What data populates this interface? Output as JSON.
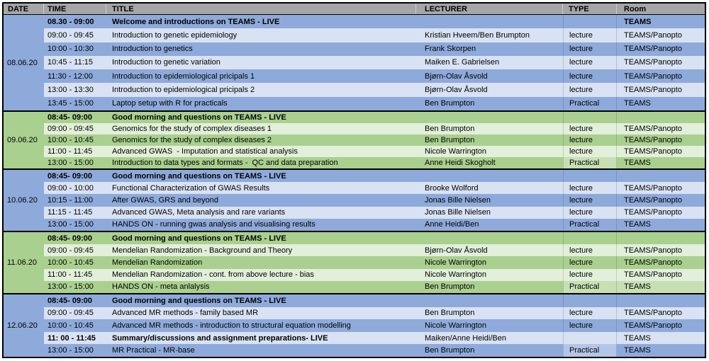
{
  "table": {
    "columns": [
      "DATE",
      "TIME",
      "TITLE",
      "LECTURER",
      "TYPE",
      "Room"
    ]
  },
  "colors": {
    "header_bg": "#A6A6A6",
    "border": "#000000",
    "text": "#000000",
    "blue_medium": "#8EAADB",
    "blue_light": "#D9E2F3",
    "blue_cell_light": "#B4C6E7",
    "green_medium": "#A9D08E",
    "green_light": "#E2EFDA",
    "green_cell_light": "#C6E0B4"
  },
  "days": [
    {
      "date": "08.06.20",
      "scheme": "blue",
      "rows": [
        {
          "time": "08.30 - 09:00",
          "title": "Welcome and introductions on TEAMS - LIVE",
          "lecturer": "",
          "type": "",
          "room": "TEAMS",
          "shade": "medium",
          "bold": true,
          "room_bold": true
        },
        {
          "time": "09:00 - 09:45",
          "title": "Introduction to genetic epidemiology",
          "lecturer": "Kristian Hveem/Ben Brumpton",
          "type": "lecture",
          "room": "TEAMS/Panopto",
          "shade": "light"
        },
        {
          "time": "10:00 - 10:30",
          "title": "Introduction to genetics",
          "lecturer": "Frank Skorpen",
          "type": "lecture",
          "room": "TEAMS/Panopto",
          "shade": "medium"
        },
        {
          "time": "10:45 - 11:15",
          "title": "Introduction to genetic variation",
          "lecturer": "Maiken E. Gabrielsen",
          "type": "lecture",
          "room": "TEAMS/Panopto",
          "shade": "light"
        },
        {
          "time": "11:30 - 12:00",
          "title": "Introduction to epidemiological pricipals 1",
          "lecturer": "Bjørn-Olav Åsvold",
          "type": "lecture",
          "room": "TEAMS/Panopto",
          "shade": "medium"
        },
        {
          "time": "13:00 - 13:30",
          "title": "Introduction to epidemiological pricipals 2",
          "lecturer": "Bjørn-Olav Åsvold",
          "type": "lecture",
          "room": "TEAMS/Panopto",
          "shade": "light"
        },
        {
          "time": "13:45 - 15:00",
          "title": "Laptop setup with R for practicals",
          "lecturer": "Ben Brumpton",
          "type": "Practical",
          "room": "TEAMS",
          "shade": "medium"
        }
      ]
    },
    {
      "date": "09.06.20",
      "scheme": "green",
      "rows": [
        {
          "time": "08:45- 09:00",
          "title": "Good morning and questions on TEAMS - LIVE",
          "lecturer": "",
          "type": "",
          "room": "",
          "shade": "medium",
          "bold": true
        },
        {
          "time": "09:00 - 09:45",
          "title": "Genomics for the study of complex diseases 1",
          "lecturer": "Ben Brumpton",
          "type": "lecture",
          "room": "TEAMS/Panopto",
          "shade": "light"
        },
        {
          "time": "10:00 - 10:45",
          "title": "Genomics for the study of complex diseases 2",
          "lecturer": "Ben Brumpton",
          "type": "lecture",
          "room": "TEAMS/Panopto",
          "shade": "medium"
        },
        {
          "time": "11:00 - 11:45",
          "title": "Advanced GWAS  - Imputation and statistical analysis",
          "lecturer": "Nicole Warrington",
          "type": "lecture",
          "room": "TEAMS/Panopto",
          "shade": "light"
        },
        {
          "time": "13:00 - 15:00",
          "title": "Introduction to data types and formats -  QC and data preparation",
          "lecturer": "Anne Heidi Skogholt",
          "type": "Practical",
          "room": "TEAMS",
          "shade": "medium",
          "type_shade": "light"
        }
      ]
    },
    {
      "date": "10.06.20",
      "scheme": "blue",
      "rows": [
        {
          "time": "08:45- 09:00",
          "title": "Good morning and questions on TEAMS - LIVE",
          "lecturer": "",
          "type": "",
          "room": "",
          "shade": "medium",
          "bold": true
        },
        {
          "time": "09:00 - 10:00",
          "title": "Functional Characterization of GWAS Results",
          "lecturer": "Brooke Wolford",
          "type": "lecture",
          "room": "TEAMS/Panopto",
          "shade": "light"
        },
        {
          "time": "10:15 - 11:00",
          "title": "After GWAS, GRS and beyond",
          "lecturer": "Jonas Bille Nielsen",
          "type": "lecture",
          "room": "TEAMS/Panopto",
          "shade": "medium"
        },
        {
          "time": "11:15 - 11:45",
          "title": "Advanced GWAS, Meta analysis and rare variants",
          "lecturer": "Jonas Bille Nielsen",
          "type": "lecture",
          "room": "TEAMS/Panopto",
          "shade": "light"
        },
        {
          "time": "13:00 - 15:00",
          "title": "HANDS ON - running gwas analysis and visualising results",
          "lecturer": "Anne Heidi/Ben",
          "type": "Practical",
          "room": "TEAMS",
          "shade": "medium"
        }
      ]
    },
    {
      "date": "11.06.20",
      "scheme": "green",
      "rows": [
        {
          "time": "08:45- 09:00",
          "title": "Good morning and questions on TEAMS - LIVE",
          "lecturer": "",
          "type": "",
          "room": "",
          "shade": "medium",
          "bold": true
        },
        {
          "time": "09:00 - 09:45",
          "title": "Mendelian Randomization - Background and Theory",
          "lecturer": "Bjørn-Olav Åsvold",
          "type": "lecture",
          "room": "TEAMS/Panopto",
          "shade": "light"
        },
        {
          "time": "10:00 - 10:45",
          "title": "Mendelian Randomization",
          "lecturer": "Nicole Warrington",
          "type": "lecture",
          "room": "TEAMS/Panopto",
          "shade": "medium"
        },
        {
          "time": "11:00 - 11:45",
          "title": "Mendelian Randomization - cont. from above lecture - bias",
          "lecturer": "Nicole Warrington",
          "type": "lecture",
          "room": "TEAMS/Panopto",
          "shade": "light"
        },
        {
          "time": "13:00 - 15:00",
          "title": "HANDS ON - meta anlalysis",
          "lecturer": "Ben Brumpton",
          "type": "Practical",
          "room": "TEAMS",
          "shade": "medium",
          "type_shade": "light",
          "room_shade": "light"
        }
      ]
    },
    {
      "date": "12.06.20",
      "scheme": "blue",
      "rows": [
        {
          "time": "08:45- 09:00",
          "title": "Good morning and questions on TEAMS - LIVE",
          "lecturer": "",
          "type": "",
          "room": "",
          "shade": "medium",
          "bold": true
        },
        {
          "time": "09:00 - 09:45",
          "title": "Advanced MR methods - family based MR",
          "lecturer": "Ben Brumpton",
          "type": "lecture",
          "room": "TEAMS/Panopto",
          "shade": "light"
        },
        {
          "time": "10:00 - 10:45",
          "title": "Advanced MR methods - introduction to structural equation modelling",
          "lecturer": "Nicole Warrington",
          "type": "lecture",
          "room": "TEAMS/Panopto",
          "shade": "medium"
        },
        {
          "time": "11: 00 - 11:45",
          "title": "Summary/discussions and assignment preparations- LIVE",
          "lecturer": "Maiken/Anne Heidi/Ben",
          "type": "",
          "room": "TEAMS",
          "shade": "light",
          "bold": true
        },
        {
          "time": "13:00 - 15:00",
          "title": "MR Practical - MR-base",
          "lecturer": "Ben Brumpton",
          "type": "Practical",
          "room": "TEAMS",
          "shade": "medium",
          "type_shade": "light"
        }
      ]
    }
  ]
}
